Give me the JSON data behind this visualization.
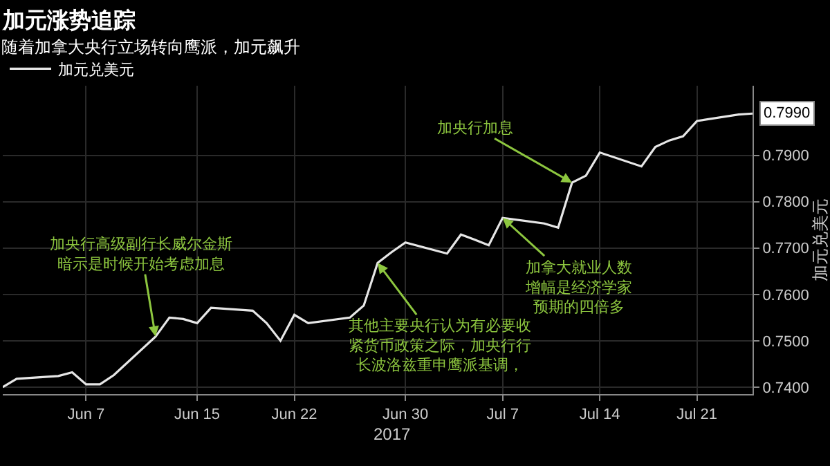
{
  "chart_data": {
    "type": "line",
    "title": "加元涨势追踪",
    "subtitle": "随着加拿大央行立场转向鹰派，加元飙升",
    "xlabel": "2017",
    "ylabel": "加元兑美元",
    "x": [
      "2017-06-01",
      "2017-06-02",
      "2017-06-05",
      "2017-06-06",
      "2017-06-07",
      "2017-06-08",
      "2017-06-09",
      "2017-06-12",
      "2017-06-13",
      "2017-06-14",
      "2017-06-15",
      "2017-06-16",
      "2017-06-19",
      "2017-06-20",
      "2017-06-21",
      "2017-06-22",
      "2017-06-23",
      "2017-06-26",
      "2017-06-27",
      "2017-06-28",
      "2017-06-29",
      "2017-06-30",
      "2017-07-03",
      "2017-07-04",
      "2017-07-05",
      "2017-07-06",
      "2017-07-07",
      "2017-07-10",
      "2017-07-11",
      "2017-07-12",
      "2017-07-13",
      "2017-07-14",
      "2017-07-17",
      "2017-07-18",
      "2017-07-19",
      "2017-07-20",
      "2017-07-21",
      "2017-07-24",
      "2017-07-25"
    ],
    "series": [
      {
        "name": "加元兑美元",
        "color": "#e6e6e6",
        "values": [
          0.74,
          0.7418,
          0.7424,
          0.7432,
          0.7406,
          0.7406,
          0.7426,
          0.7509,
          0.755,
          0.7547,
          0.7538,
          0.7571,
          0.7565,
          0.7538,
          0.75,
          0.7556,
          0.7538,
          0.755,
          0.7576,
          0.7668,
          0.7691,
          0.7712,
          0.7688,
          0.7729,
          0.7718,
          0.7706,
          0.7765,
          0.7753,
          0.7744,
          0.7841,
          0.7856,
          0.7906,
          0.7876,
          0.7918,
          0.7932,
          0.7941,
          0.7974,
          0.7988,
          0.799
        ],
        "value_labels": [
          null,
          null,
          null,
          null,
          null,
          null,
          null,
          null,
          null,
          null,
          null,
          null,
          null,
          null,
          null,
          null,
          null,
          null,
          null,
          null,
          null,
          null,
          null,
          null,
          null,
          null,
          null,
          null,
          null,
          null,
          null,
          null,
          null,
          null,
          null,
          null,
          null,
          null,
          "0.7990"
        ]
      }
    ],
    "xlim": [
      "2017-06-01",
      "2017-07-25"
    ],
    "xticks": [
      {
        "value": "2017-06-07",
        "label": "Jun 7"
      },
      {
        "value": "2017-06-15",
        "label": "Jun 15"
      },
      {
        "value": "2017-06-22",
        "label": "Jun 22"
      },
      {
        "value": "2017-06-30",
        "label": "Jun 30"
      },
      {
        "value": "2017-07-07",
        "label": "Jul 7"
      },
      {
        "value": "2017-07-14",
        "label": "Jul 14"
      },
      {
        "value": "2017-07-21",
        "label": "Jul 21"
      }
    ],
    "ylim": [
      0.7385,
      0.805
    ],
    "yticks": [
      {
        "value": 0.74,
        "label": "0.7400"
      },
      {
        "value": 0.75,
        "label": "0.7500"
      },
      {
        "value": 0.76,
        "label": "0.7600"
      },
      {
        "value": 0.77,
        "label": "0.7700"
      },
      {
        "value": 0.78,
        "label": "0.7800"
      },
      {
        "value": 0.79,
        "label": "0.7900"
      }
    ],
    "grid": true,
    "legend": "top left",
    "marker": "none",
    "line_style": "solid",
    "annotations": [
      {
        "text": "加央行高级副行长威尔金斯暗示是时候开始考虑加息",
        "x": "2017-06-12",
        "y": 0.7509
      },
      {
        "text": "其他主要央行认为有必要收紧货币政策之际，加央行行长波洛兹重申鹰派基调，",
        "x": "2017-06-28",
        "y": 0.7668
      },
      {
        "text": "加央行加息",
        "x": "2017-07-12",
        "y": 0.7841
      },
      {
        "text": "加拿大就业人数增幅是经济学家预期的四倍多",
        "x": "2017-07-07",
        "y": 0.7765
      }
    ]
  }
}
